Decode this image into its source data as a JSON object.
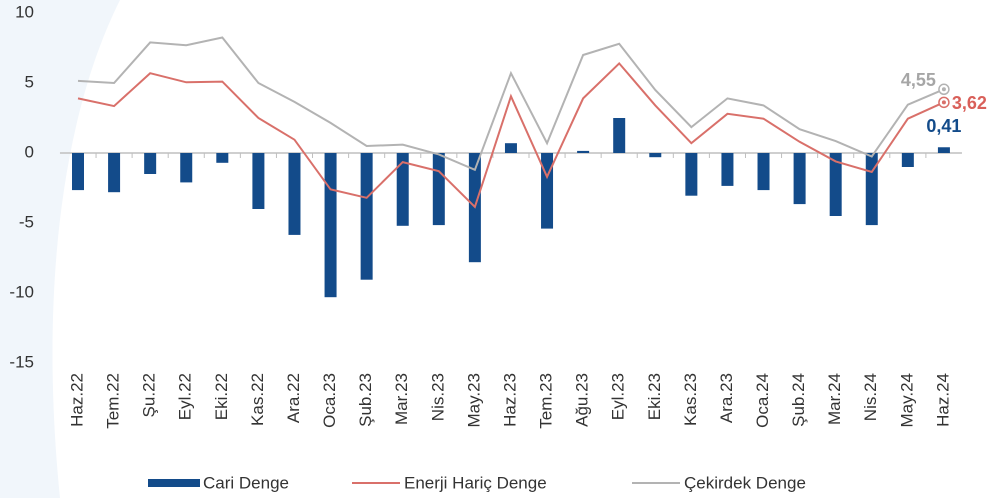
{
  "chart_data": {
    "type": "bar_line",
    "categories": [
      "Haz.22",
      "Tem.22",
      "Şu.22",
      "Eyl.22",
      "Eki.22",
      "Kas.22",
      "Ara.22",
      "Oca.23",
      "Şub.23",
      "Mar.23",
      "Nis.23",
      "May.23",
      "Haz.23",
      "Tem.23",
      "Ağu.23",
      "Eyl.23",
      "Eki.23",
      "Kas.23",
      "Ara.23",
      "Oca.24",
      "Şub.24",
      "Mar.24",
      "Nis.24",
      "May.24",
      "Haz.24"
    ],
    "series": [
      {
        "name": "Cari Denge",
        "type": "bar",
        "color": "#134b8a",
        "values": [
          -2.65,
          -2.8,
          -1.5,
          -2.1,
          -0.7,
          -4.0,
          -5.85,
          -10.3,
          -9.05,
          -5.2,
          -5.15,
          -7.8,
          0.7,
          -5.4,
          0.15,
          2.5,
          -0.3,
          -3.05,
          -2.35,
          -2.65,
          -3.65,
          -4.5,
          -5.15,
          -1.0,
          0.41
        ],
        "value_labels": [
          null,
          null,
          null,
          null,
          null,
          null,
          null,
          null,
          null,
          null,
          null,
          null,
          null,
          null,
          null,
          null,
          null,
          null,
          null,
          null,
          null,
          null,
          null,
          null,
          "0,41"
        ]
      },
      {
        "name": "Enerji Hariç Denge",
        "type": "line",
        "color": "#d9706a",
        "label_color": "#d9605a",
        "values": [
          3.9,
          3.35,
          5.7,
          5.05,
          5.1,
          2.5,
          0.95,
          -2.6,
          -3.2,
          -0.65,
          -1.3,
          -3.85,
          4.05,
          -1.7,
          3.9,
          6.4,
          3.4,
          0.7,
          2.8,
          2.45,
          0.8,
          -0.6,
          -1.35,
          2.45,
          3.62
        ],
        "value_labels": [
          null,
          null,
          null,
          null,
          null,
          null,
          null,
          null,
          null,
          null,
          null,
          null,
          null,
          null,
          null,
          null,
          null,
          null,
          null,
          null,
          null,
          null,
          null,
          null,
          "3,62"
        ]
      },
      {
        "name": "Çekirdek Denge",
        "type": "line",
        "color": "#b3b3b3",
        "label_color": "#a6a6a6",
        "values": [
          5.15,
          5.0,
          7.9,
          7.7,
          8.25,
          5.0,
          3.65,
          2.15,
          0.5,
          0.6,
          -0.1,
          -1.2,
          5.7,
          0.7,
          7.0,
          7.8,
          4.5,
          1.85,
          3.9,
          3.4,
          1.7,
          0.85,
          -0.25,
          3.45,
          4.55
        ],
        "value_labels": [
          null,
          null,
          null,
          null,
          null,
          null,
          null,
          null,
          null,
          null,
          null,
          null,
          null,
          null,
          null,
          null,
          null,
          null,
          null,
          null,
          null,
          null,
          null,
          null,
          "4,55"
        ]
      }
    ],
    "ylim": [
      -15,
      10
    ],
    "yticks": [
      10,
      5,
      0,
      -5,
      -10,
      -15
    ],
    "grid": false,
    "legend": "bottom"
  }
}
